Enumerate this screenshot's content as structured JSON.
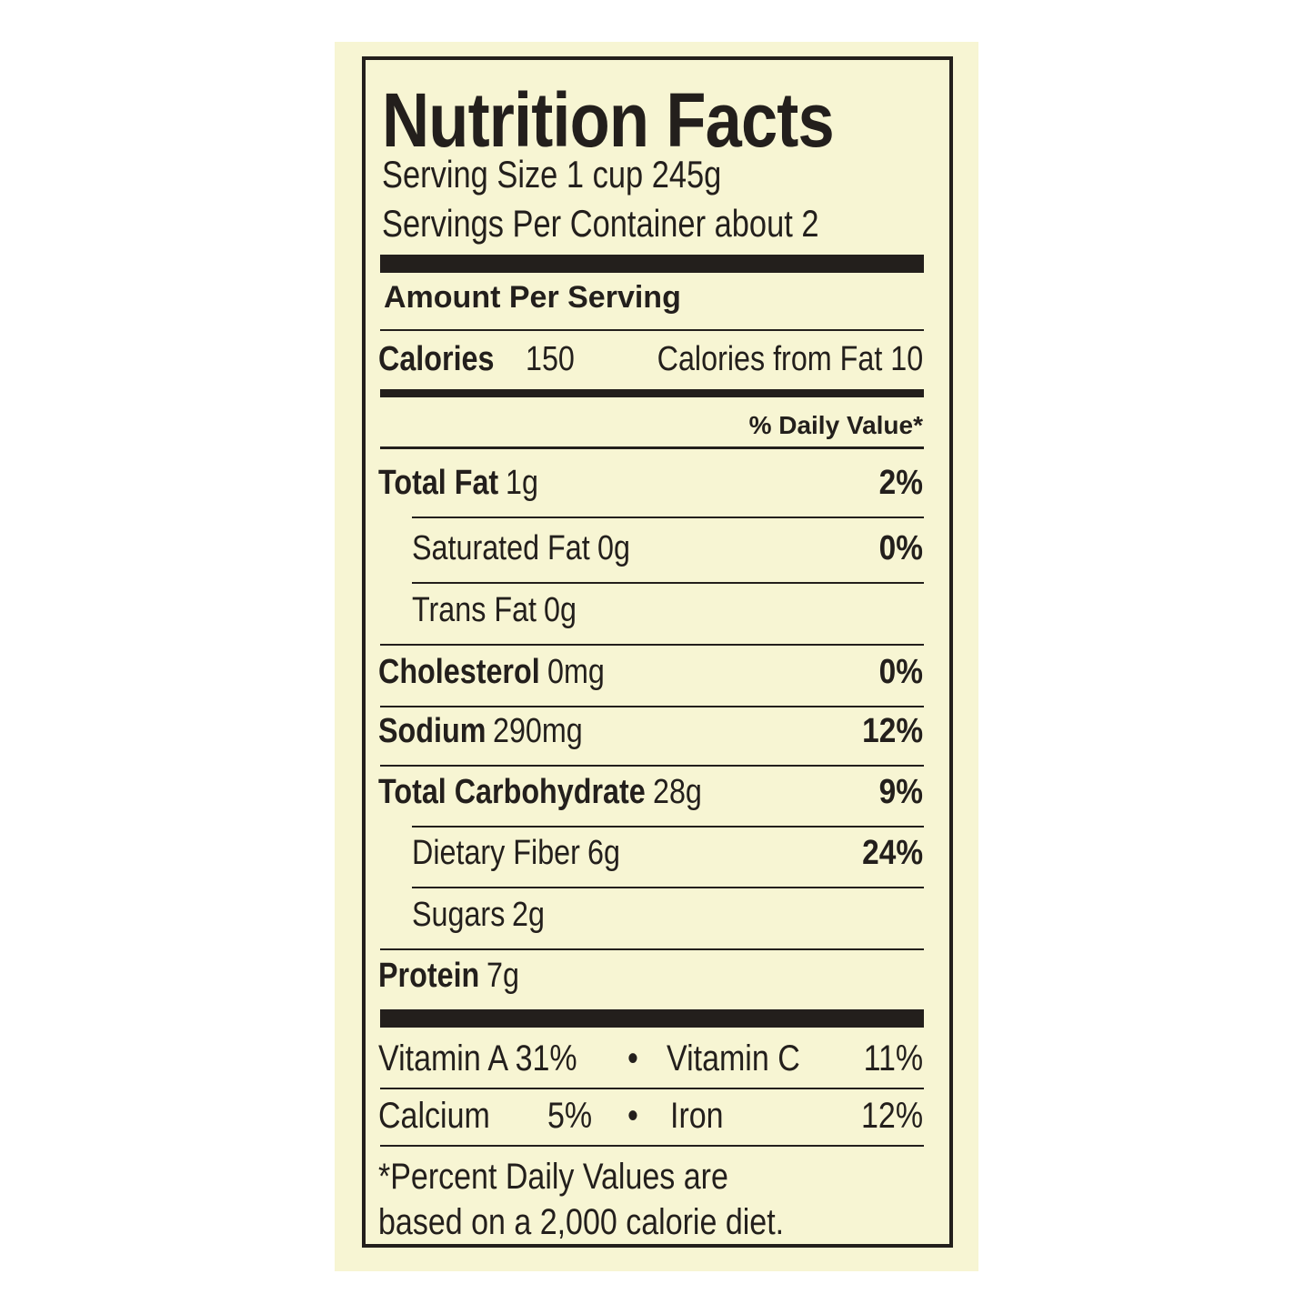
{
  "title": "Nutrition Facts",
  "serving_size": "Serving Size 1 cup 245g",
  "servings_per_container": "Servings Per Container about 2",
  "amount_per_serving": "Amount Per Serving",
  "calories": {
    "label": "Calories",
    "value": "150",
    "from_fat": "Calories from Fat 10"
  },
  "daily_value_header": "% Daily Value*",
  "nutrients": [
    {
      "name": "Total Fat",
      "amount": "1g",
      "dv": "2%"
    },
    {
      "name": "Saturated Fat",
      "amount": "0g",
      "dv": "0%"
    },
    {
      "name": "Trans Fat",
      "amount": "0g",
      "dv": ""
    },
    {
      "name": "Cholesterol",
      "amount": "0mg",
      "dv": "0%"
    },
    {
      "name": "Sodium",
      "amount": "290mg",
      "dv": "12%"
    },
    {
      "name": "Total Carbohydrate",
      "amount": "28g",
      "dv": "9%"
    },
    {
      "name": "Dietary Fiber",
      "amount": "6g",
      "dv": "24%"
    },
    {
      "name": "Sugars",
      "amount": "2g",
      "dv": ""
    },
    {
      "name": "Protein",
      "amount": "7g",
      "dv": ""
    }
  ],
  "vitamins": {
    "vitamin_a": "Vitamin A 31%",
    "vitamin_c_label": "Vitamin C",
    "vitamin_c": "11%",
    "calcium_label": "Calcium",
    "calcium": "5%",
    "iron_label": "Iron",
    "iron": "12%",
    "bullet": "•"
  },
  "footnote": [
    "*Percent Daily Values are",
    "based on a 2,000 calorie diet."
  ],
  "colors": {
    "label_bg": "#f7f5d3",
    "ink": "#231f1c"
  }
}
